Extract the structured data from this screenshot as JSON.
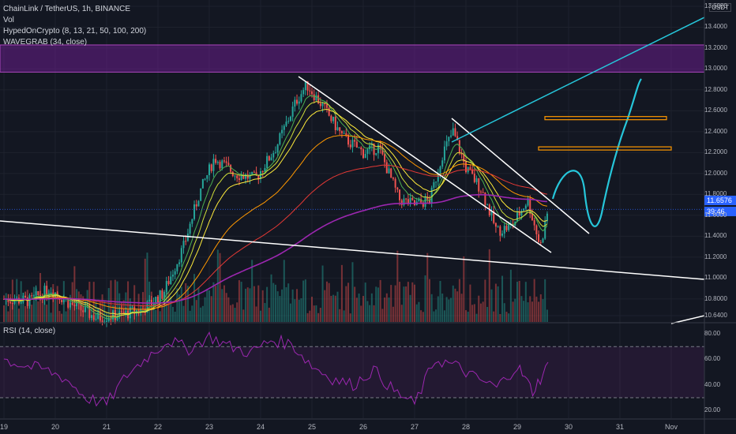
{
  "header": {
    "symbol": "ChainLink / TetherUS, 1h, BINANCE",
    "indicators": [
      "Vol",
      "HypedOnCrypto (8, 13, 21, 50, 100, 200)",
      "WAVEGRAB (34, close)"
    ],
    "rsi_label": "RSI (14, close)",
    "currency": "USDT"
  },
  "price_tag": "11.6576",
  "time_tag": "39:46",
  "colors": {
    "background": "#131722",
    "bull": "#26a69a",
    "bear": "#ef5350",
    "ema200": "#9c27b0",
    "trendline": "#ffffff",
    "cyan": "#26c6da",
    "zone": "#7b1fa2",
    "target": "#ff9800",
    "rsi": "#9c27b0"
  },
  "chart_data": [
    {
      "type": "candlestick",
      "title": "ChainLink / TetherUS, 1h, BINANCE",
      "y_ticks": [
        "13.6000",
        "13.4000",
        "13.2000",
        "13.0000",
        "12.8000",
        "12.6000",
        "12.4000",
        "12.2000",
        "12.0000",
        "11.8000",
        "11.6000",
        "11.4000",
        "11.2000",
        "11.0000",
        "10.8000",
        "10.6400"
      ],
      "x_ticks": [
        "19",
        "20",
        "21",
        "22",
        "23",
        "24",
        "25",
        "26",
        "27",
        "28",
        "29",
        "30",
        "31",
        "Nov"
      ],
      "ylim": [
        10.58,
        13.66
      ],
      "last_price": 11.6576,
      "price_path": [
        {
          "day": 19.0,
          "price": 10.8
        },
        {
          "day": 19.5,
          "price": 10.78
        },
        {
          "day": 19.9,
          "price": 10.9
        },
        {
          "day": 20.3,
          "price": 10.75
        },
        {
          "day": 20.8,
          "price": 10.62
        },
        {
          "day": 21.3,
          "price": 10.65
        },
        {
          "day": 21.7,
          "price": 10.7
        },
        {
          "day": 22.1,
          "price": 10.85
        },
        {
          "day": 22.5,
          "price": 11.3
        },
        {
          "day": 22.8,
          "price": 11.8
        },
        {
          "day": 23.1,
          "price": 12.15
        },
        {
          "day": 23.5,
          "price": 12.0
        },
        {
          "day": 23.9,
          "price": 11.95
        },
        {
          "day": 24.3,
          "price": 12.25
        },
        {
          "day": 24.7,
          "price": 12.7
        },
        {
          "day": 24.9,
          "price": 12.85
        },
        {
          "day": 25.2,
          "price": 12.65
        },
        {
          "day": 25.6,
          "price": 12.35
        },
        {
          "day": 26.0,
          "price": 12.2
        },
        {
          "day": 26.3,
          "price": 12.25
        },
        {
          "day": 26.7,
          "price": 11.75
        },
        {
          "day": 27.0,
          "price": 11.7
        },
        {
          "day": 27.3,
          "price": 11.75
        },
        {
          "day": 27.55,
          "price": 12.2
        },
        {
          "day": 27.75,
          "price": 12.4
        },
        {
          "day": 28.0,
          "price": 12.05
        },
        {
          "day": 28.3,
          "price": 11.85
        },
        {
          "day": 28.6,
          "price": 11.45
        },
        {
          "day": 28.9,
          "price": 11.5
        },
        {
          "day": 29.2,
          "price": 11.75
        },
        {
          "day": 29.45,
          "price": 11.3
        },
        {
          "day": 29.6,
          "price": 11.66
        }
      ],
      "levels": {
        "resistance_zone": [
          12.97,
          13.23
        ],
        "targets": [
          12.53,
          12.24
        ]
      }
    },
    {
      "type": "line",
      "title": "RSI (14, close)",
      "y_ticks": [
        "80.00",
        "60.00",
        "40.00",
        "20.00"
      ],
      "ylim": [
        14,
        88
      ],
      "bands": [
        30,
        70
      ],
      "x": [
        19.0,
        19.4,
        19.8,
        20.2,
        20.6,
        21.0,
        21.4,
        21.8,
        22.2,
        22.6,
        23.0,
        23.4,
        23.8,
        24.2,
        24.6,
        25.0,
        25.4,
        25.8,
        26.2,
        26.6,
        27.0,
        27.4,
        27.8,
        28.2,
        28.6,
        29.0,
        29.3,
        29.6
      ],
      "values": [
        60,
        55,
        52,
        45,
        30,
        25,
        48,
        62,
        75,
        68,
        78,
        70,
        65,
        75,
        72,
        55,
        45,
        40,
        52,
        35,
        25,
        60,
        55,
        45,
        38,
        55,
        35,
        55
      ]
    }
  ]
}
